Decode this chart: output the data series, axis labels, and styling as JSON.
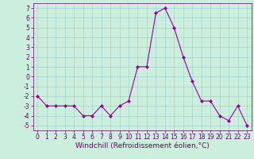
{
  "x": [
    0,
    1,
    2,
    3,
    4,
    5,
    6,
    7,
    8,
    9,
    10,
    11,
    12,
    13,
    14,
    15,
    16,
    17,
    18,
    19,
    20,
    21,
    22,
    23
  ],
  "y": [
    -2,
    -3,
    -3,
    -3,
    -3,
    -4,
    -4,
    -3,
    -4,
    -3,
    -2.5,
    1,
    1,
    6.5,
    7,
    5,
    2,
    -0.5,
    -2.5,
    -2.5,
    -4,
    -4.5,
    -3,
    -5
  ],
  "line_color": "#990099",
  "marker": "D",
  "marker_size": 2,
  "bg_color": "#cceedd",
  "grid_color": "#99cccc",
  "xlabel": "Windchill (Refroidissement éolien,°C)",
  "xlabel_color": "#660066",
  "xlabel_fontsize": 6.5,
  "yticks": [
    -5,
    -4,
    -3,
    -2,
    -1,
    0,
    1,
    2,
    3,
    4,
    5,
    6,
    7
  ],
  "xticks": [
    0,
    1,
    2,
    3,
    4,
    5,
    6,
    7,
    8,
    9,
    10,
    11,
    12,
    13,
    14,
    15,
    16,
    17,
    18,
    19,
    20,
    21,
    22,
    23
  ],
  "ylim": [
    -5.5,
    7.5
  ],
  "xlim": [
    -0.5,
    23.5
  ],
  "tick_color": "#660066",
  "tick_fontsize": 5.5,
  "spine_color": "#660066"
}
